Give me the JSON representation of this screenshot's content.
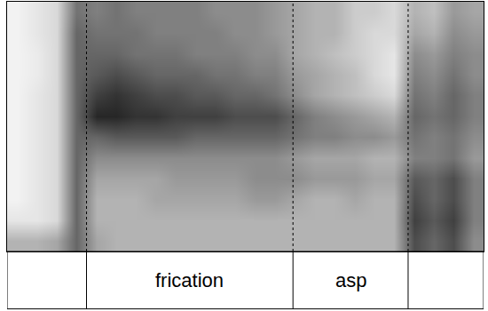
{
  "chart_data": {
    "type": "heatmap",
    "tick_labels": false,
    "grid": false,
    "xlim": [
      0,
      24
    ],
    "ylim": [
      0,
      12
    ],
    "zlim": [
      0,
      1
    ],
    "x": [
      0.5,
      1.5,
      2.5,
      3.5,
      4.5,
      5.5,
      6.5,
      7.5,
      8.5,
      9.5,
      10.5,
      11.5,
      12.5,
      13.5,
      14.5,
      15.5,
      16.5,
      17.5,
      18.5,
      19.5,
      20.5,
      21.5,
      22.5,
      23.5
    ],
    "y": [
      0.5,
      1.5,
      2.5,
      3.5,
      4.5,
      5.5,
      6.5,
      7.5,
      8.5,
      9.5,
      10.5,
      11.5
    ],
    "z": [
      [
        0.3,
        0.3,
        0.35,
        0.6,
        0.35,
        0.3,
        0.3,
        0.3,
        0.3,
        0.3,
        0.3,
        0.3,
        0.3,
        0.3,
        0.3,
        0.3,
        0.3,
        0.3,
        0.3,
        0.3,
        0.7,
        0.6,
        0.7,
        0.45
      ],
      [
        0.1,
        0.1,
        0.15,
        0.6,
        0.3,
        0.3,
        0.3,
        0.3,
        0.3,
        0.3,
        0.3,
        0.3,
        0.3,
        0.3,
        0.3,
        0.3,
        0.3,
        0.3,
        0.3,
        0.3,
        0.75,
        0.65,
        0.75,
        0.5
      ],
      [
        0.05,
        0.1,
        0.15,
        0.6,
        0.3,
        0.3,
        0.3,
        0.35,
        0.35,
        0.35,
        0.35,
        0.35,
        0.4,
        0.4,
        0.35,
        0.3,
        0.3,
        0.35,
        0.3,
        0.3,
        0.7,
        0.6,
        0.7,
        0.5
      ],
      [
        0.05,
        0.1,
        0.15,
        0.6,
        0.35,
        0.35,
        0.35,
        0.35,
        0.4,
        0.4,
        0.4,
        0.4,
        0.45,
        0.45,
        0.45,
        0.4,
        0.4,
        0.4,
        0.35,
        0.35,
        0.65,
        0.6,
        0.7,
        0.5
      ],
      [
        0.05,
        0.1,
        0.15,
        0.6,
        0.45,
        0.45,
        0.45,
        0.45,
        0.45,
        0.45,
        0.45,
        0.45,
        0.45,
        0.45,
        0.4,
        0.35,
        0.35,
        0.35,
        0.3,
        0.3,
        0.5,
        0.5,
        0.55,
        0.4
      ],
      [
        0.05,
        0.1,
        0.15,
        0.6,
        0.6,
        0.65,
        0.65,
        0.65,
        0.65,
        0.6,
        0.6,
        0.6,
        0.6,
        0.6,
        0.55,
        0.5,
        0.5,
        0.45,
        0.45,
        0.4,
        0.55,
        0.5,
        0.55,
        0.45
      ],
      [
        0.05,
        0.1,
        0.15,
        0.6,
        0.85,
        0.85,
        0.8,
        0.8,
        0.75,
        0.75,
        0.75,
        0.7,
        0.7,
        0.7,
        0.6,
        0.5,
        0.45,
        0.4,
        0.35,
        0.3,
        0.6,
        0.55,
        0.6,
        0.5
      ],
      [
        0.05,
        0.1,
        0.15,
        0.6,
        0.75,
        0.8,
        0.75,
        0.7,
        0.7,
        0.65,
        0.65,
        0.6,
        0.6,
        0.55,
        0.45,
        0.35,
        0.3,
        0.25,
        0.2,
        0.15,
        0.55,
        0.5,
        0.6,
        0.5
      ],
      [
        0.05,
        0.08,
        0.15,
        0.6,
        0.65,
        0.7,
        0.65,
        0.6,
        0.6,
        0.6,
        0.55,
        0.55,
        0.5,
        0.5,
        0.4,
        0.35,
        0.3,
        0.25,
        0.15,
        0.1,
        0.5,
        0.45,
        0.55,
        0.45
      ],
      [
        0.05,
        0.08,
        0.15,
        0.6,
        0.6,
        0.6,
        0.55,
        0.55,
        0.55,
        0.5,
        0.5,
        0.5,
        0.45,
        0.45,
        0.35,
        0.3,
        0.25,
        0.2,
        0.15,
        0.1,
        0.45,
        0.4,
        0.5,
        0.45
      ],
      [
        0.05,
        0.1,
        0.15,
        0.6,
        0.55,
        0.55,
        0.55,
        0.5,
        0.5,
        0.5,
        0.5,
        0.45,
        0.45,
        0.4,
        0.35,
        0.3,
        0.3,
        0.2,
        0.15,
        0.15,
        0.35,
        0.3,
        0.45,
        0.4
      ],
      [
        0.05,
        0.1,
        0.15,
        0.55,
        0.5,
        0.55,
        0.5,
        0.5,
        0.5,
        0.5,
        0.45,
        0.45,
        0.45,
        0.4,
        0.35,
        0.3,
        0.3,
        0.2,
        0.2,
        0.15,
        0.3,
        0.25,
        0.4,
        0.35
      ]
    ],
    "segments": [
      {
        "label": null,
        "start": 0,
        "end": 4
      },
      {
        "label": "frication",
        "start": 4,
        "end": 14.4
      },
      {
        "label": "asp",
        "start": 14.4,
        "end": 20.2
      },
      {
        "label": null,
        "start": 20.2,
        "end": 24
      }
    ]
  }
}
